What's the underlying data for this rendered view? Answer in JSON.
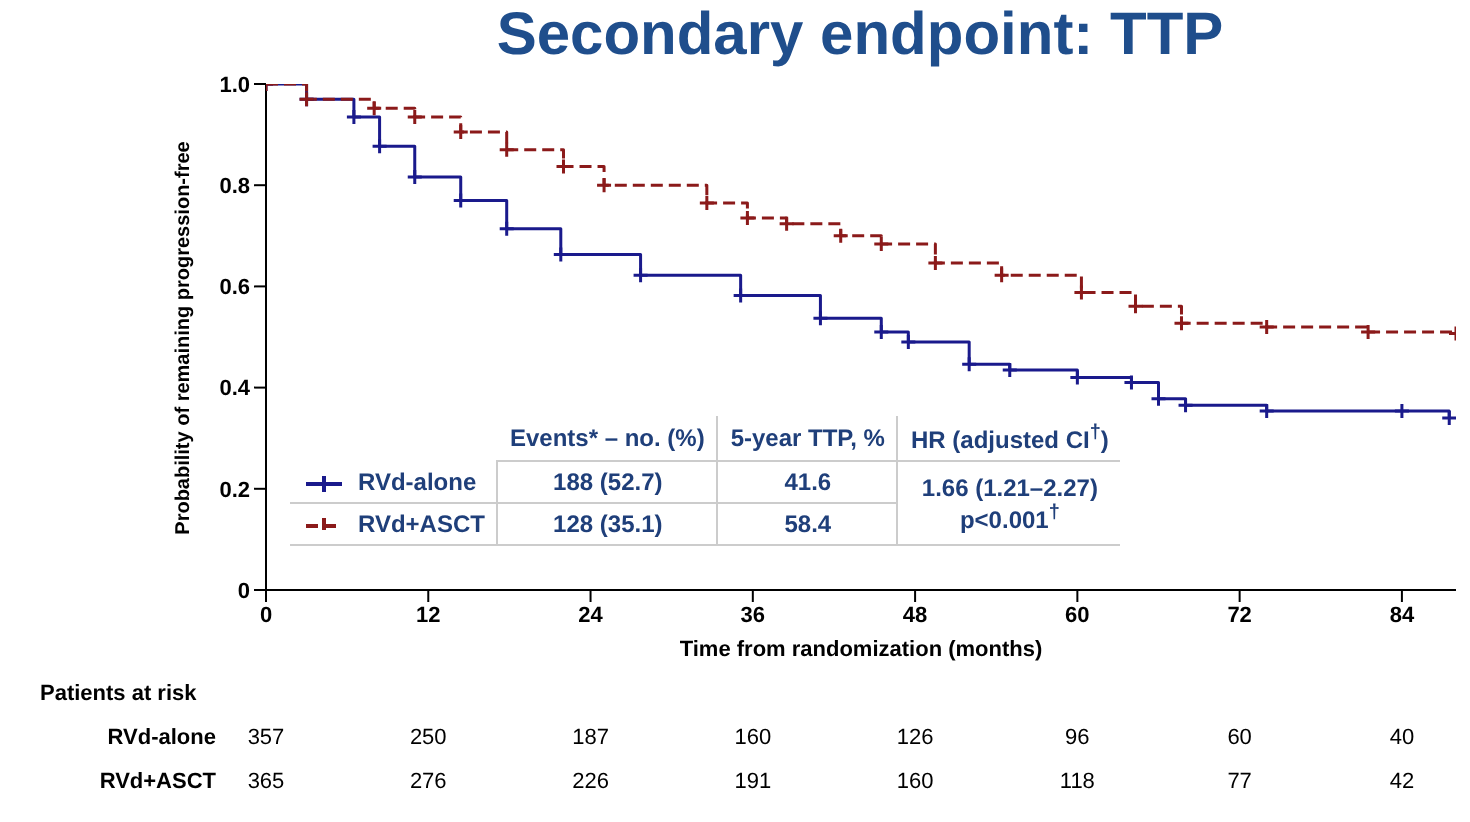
{
  "chart_data": {
    "type": "step",
    "title": "Secondary endpoint: TTP",
    "xlabel": "Time from randomization (months)",
    "ylabel": "Probability of remaining progression-free",
    "xlim": [
      0,
      88
    ],
    "xticks": [
      0,
      12,
      24,
      36,
      48,
      60,
      72,
      84
    ],
    "ylim": [
      0,
      1
    ],
    "yticks": [
      0,
      0.2,
      0.4,
      0.6,
      0.8,
      {
        "value": 1,
        "label": "1.0"
      }
    ],
    "legend": "bottom left",
    "marker": "cross",
    "series": [
      {
        "name": "RVd-alone",
        "color": "#1a1a8c",
        "line_style": "solid",
        "x": [
          0,
          3,
          6.5,
          8.4,
          11,
          14.4,
          17.8,
          21.8,
          27.7,
          35.1,
          41,
          45.5,
          47.5,
          52,
          55,
          60,
          64,
          66,
          68,
          74,
          84,
          87.5
        ],
        "values": [
          1,
          0.97,
          0.935,
          0.877,
          0.816,
          0.77,
          0.714,
          0.663,
          0.622,
          0.582,
          0.537,
          0.51,
          0.49,
          0.446,
          0.435,
          0.42,
          0.41,
          0.378,
          0.365,
          0.354,
          0.354,
          0.34
        ]
      },
      {
        "name": "RVd+ASCT",
        "color": "#8b1a1a",
        "line_style": "dashed",
        "x": [
          0,
          3,
          8,
          11,
          14.4,
          17.8,
          22,
          25,
          32.6,
          35.6,
          38.5,
          42.5,
          45.5,
          49.5,
          54.4,
          60.3,
          64.3,
          67.7,
          74,
          81.5,
          88
        ],
        "values": [
          1,
          0.97,
          0.952,
          0.935,
          0.905,
          0.87,
          0.837,
          0.8,
          0.765,
          0.735,
          0.724,
          0.7,
          0.684,
          0.646,
          0.622,
          0.588,
          0.561,
          0.527,
          0.52,
          0.51,
          0.507
        ]
      }
    ],
    "annotations": [
      "Events* – no. (%)",
      "5-year TTP, %",
      "HR (adjusted CI$^{†}$)",
      "188 (52.7)",
      "41.6",
      "128 (35.1)",
      "58.4",
      "1.66 (1.21–2.27)",
      "p<0.001$^{†}$",
      "Patients at risk",
      "357",
      "250",
      "187",
      "160",
      "126",
      "96",
      "60",
      "40",
      "365",
      "276",
      "226",
      "191",
      "160",
      "118",
      "77",
      "42"
    ]
  }
}
